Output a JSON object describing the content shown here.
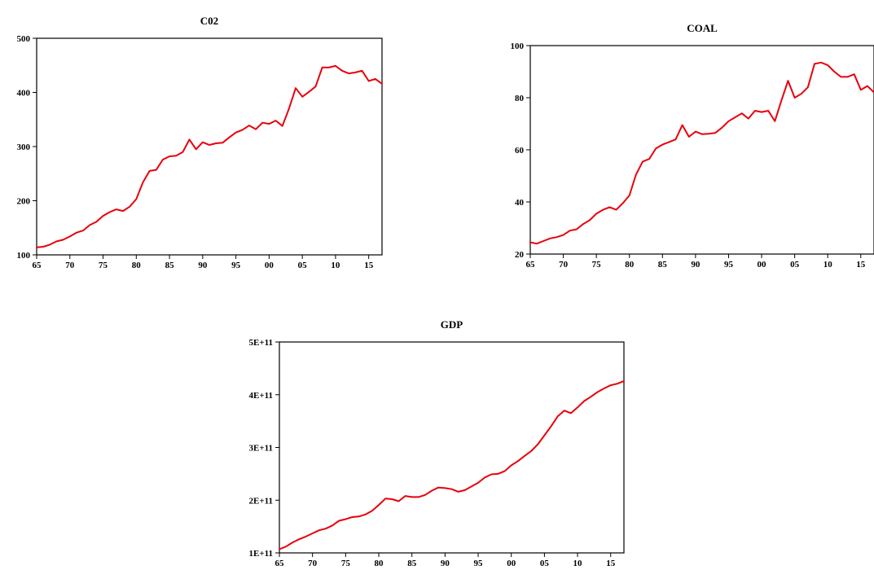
{
  "colors": {
    "series": "#e8000b",
    "axis": "#000000",
    "background": "#ffffff"
  },
  "chart_data": [
    {
      "type": "line",
      "title": "C02",
      "xlabel": "",
      "ylabel": "",
      "xlim": [
        1965,
        2017
      ],
      "ylim": [
        100,
        500
      ],
      "xticks": [
        1965,
        1970,
        1975,
        1980,
        1985,
        1990,
        1995,
        2000,
        2005,
        2010,
        2015
      ],
      "xtick_labels": [
        "65",
        "70",
        "75",
        "80",
        "85",
        "90",
        "95",
        "00",
        "05",
        "10",
        "15"
      ],
      "yticks": [
        100,
        200,
        300,
        400,
        500
      ],
      "ytick_labels": [
        "100",
        "200",
        "300",
        "400",
        "500"
      ],
      "grid": false,
      "x": [
        1965,
        1966,
        1967,
        1968,
        1969,
        1970,
        1971,
        1972,
        1973,
        1974,
        1975,
        1976,
        1977,
        1978,
        1979,
        1980,
        1981,
        1982,
        1983,
        1984,
        1985,
        1986,
        1987,
        1988,
        1989,
        1990,
        1991,
        1992,
        1993,
        1994,
        1995,
        1996,
        1997,
        1998,
        1999,
        2000,
        2001,
        2002,
        2003,
        2004,
        2005,
        2006,
        2007,
        2008,
        2009,
        2010,
        2011,
        2012,
        2013,
        2014,
        2015,
        2016,
        2017
      ],
      "series": [
        {
          "values": [
            114,
            115,
            119,
            125,
            128,
            134,
            141,
            145,
            155,
            161,
            172,
            179,
            184,
            181,
            189,
            203,
            234,
            255,
            257,
            276,
            282,
            283,
            290,
            313,
            295,
            308,
            303,
            306,
            307,
            317,
            326,
            331,
            339,
            332,
            344,
            342,
            348,
            338,
            370,
            408,
            392,
            401,
            411,
            446,
            446,
            449,
            440,
            435,
            437,
            440,
            421,
            425,
            416
          ]
        }
      ]
    },
    {
      "type": "line",
      "title": "COAL",
      "xlabel": "",
      "ylabel": "",
      "xlim": [
        1965,
        2017
      ],
      "ylim": [
        20,
        100
      ],
      "xticks": [
        1965,
        1970,
        1975,
        1980,
        1985,
        1990,
        1995,
        2000,
        2005,
        2010,
        2015
      ],
      "xtick_labels": [
        "65",
        "70",
        "75",
        "80",
        "85",
        "90",
        "95",
        "00",
        "05",
        "10",
        "15"
      ],
      "yticks": [
        20,
        40,
        60,
        80,
        100
      ],
      "ytick_labels": [
        "20",
        "40",
        "60",
        "80",
        "100"
      ],
      "grid": false,
      "x": [
        1965,
        1966,
        1967,
        1968,
        1969,
        1970,
        1971,
        1972,
        1973,
        1974,
        1975,
        1976,
        1977,
        1978,
        1979,
        1980,
        1981,
        1982,
        1983,
        1984,
        1985,
        1986,
        1987,
        1988,
        1989,
        1990,
        1991,
        1992,
        1993,
        1994,
        1995,
        1996,
        1997,
        1998,
        1999,
        2000,
        2001,
        2002,
        2003,
        2004,
        2005,
        2006,
        2007,
        2008,
        2009,
        2010,
        2011,
        2012,
        2013,
        2014,
        2015,
        2016,
        2017
      ],
      "series": [
        {
          "values": [
            24.5,
            24.0,
            25.0,
            26.0,
            26.5,
            27.3,
            29.0,
            29.5,
            31.5,
            33.0,
            35.5,
            37.0,
            38.0,
            37.0,
            39.5,
            42.5,
            50.5,
            55.5,
            56.5,
            60.5,
            62.0,
            63.0,
            64.0,
            69.5,
            65.0,
            67.0,
            66.0,
            66.2,
            66.5,
            68.5,
            71.0,
            72.5,
            74.0,
            72.0,
            75.0,
            74.5,
            75.0,
            71.0,
            79.0,
            86.5,
            80.0,
            81.5,
            84.0,
            93.0,
            93.5,
            92.5,
            90.0,
            88.0,
            88.0,
            89.0,
            83.0,
            84.5,
            82.0
          ]
        }
      ]
    },
    {
      "type": "line",
      "title": "GDP",
      "xlabel": "",
      "ylabel": "",
      "xlim": [
        1965,
        2017
      ],
      "ylim": [
        100000000000.0,
        500000000000.0
      ],
      "xticks": [
        1965,
        1970,
        1975,
        1980,
        1985,
        1990,
        1995,
        2000,
        2005,
        2010,
        2015
      ],
      "xtick_labels": [
        "65",
        "70",
        "75",
        "80",
        "85",
        "90",
        "95",
        "00",
        "05",
        "10",
        "15"
      ],
      "yticks": [
        100000000000.0,
        200000000000.0,
        300000000000.0,
        400000000000.0,
        500000000000.0
      ],
      "ytick_labels": [
        "1E+11",
        "2E+11",
        "3E+11",
        "4E+11",
        "5E+11"
      ],
      "grid": false,
      "x": [
        1965,
        1966,
        1967,
        1968,
        1969,
        1970,
        1971,
        1972,
        1973,
        1974,
        1975,
        1976,
        1977,
        1978,
        1979,
        1980,
        1981,
        1982,
        1983,
        1984,
        1985,
        1986,
        1987,
        1988,
        1989,
        1990,
        1991,
        1992,
        1993,
        1994,
        1995,
        1996,
        1997,
        1998,
        1999,
        2000,
        2001,
        2002,
        2003,
        2004,
        2005,
        2006,
        2007,
        2008,
        2009,
        2010,
        2011,
        2012,
        2013,
        2014,
        2015,
        2016,
        2017
      ],
      "series": [
        {
          "values": [
            107000000000.0,
            112000000000.0,
            120000000000.0,
            126000000000.0,
            131000000000.0,
            137000000000.0,
            143000000000.0,
            146000000000.0,
            152000000000.0,
            161000000000.0,
            164000000000.0,
            168000000000.0,
            169000000000.0,
            173000000000.0,
            180000000000.0,
            191000000000.0,
            203000000000.0,
            202000000000.0,
            198000000000.0,
            208000000000.0,
            206000000000.0,
            206000000000.0,
            210000000000.0,
            218000000000.0,
            224000000000.0,
            223000000000.0,
            221000000000.0,
            216000000000.0,
            219000000000.0,
            226000000000.0,
            233000000000.0,
            243000000000.0,
            249000000000.0,
            250000000000.0,
            255000000000.0,
            266000000000.0,
            274000000000.0,
            284000000000.0,
            293000000000.0,
            306000000000.0,
            323000000000.0,
            340000000000.0,
            359000000000.0,
            370000000000.0,
            365000000000.0,
            376000000000.0,
            388000000000.0,
            396000000000.0,
            405000000000.0,
            412000000000.0,
            418000000000.0,
            421000000000.0,
            426000000000.0
          ]
        }
      ]
    }
  ]
}
